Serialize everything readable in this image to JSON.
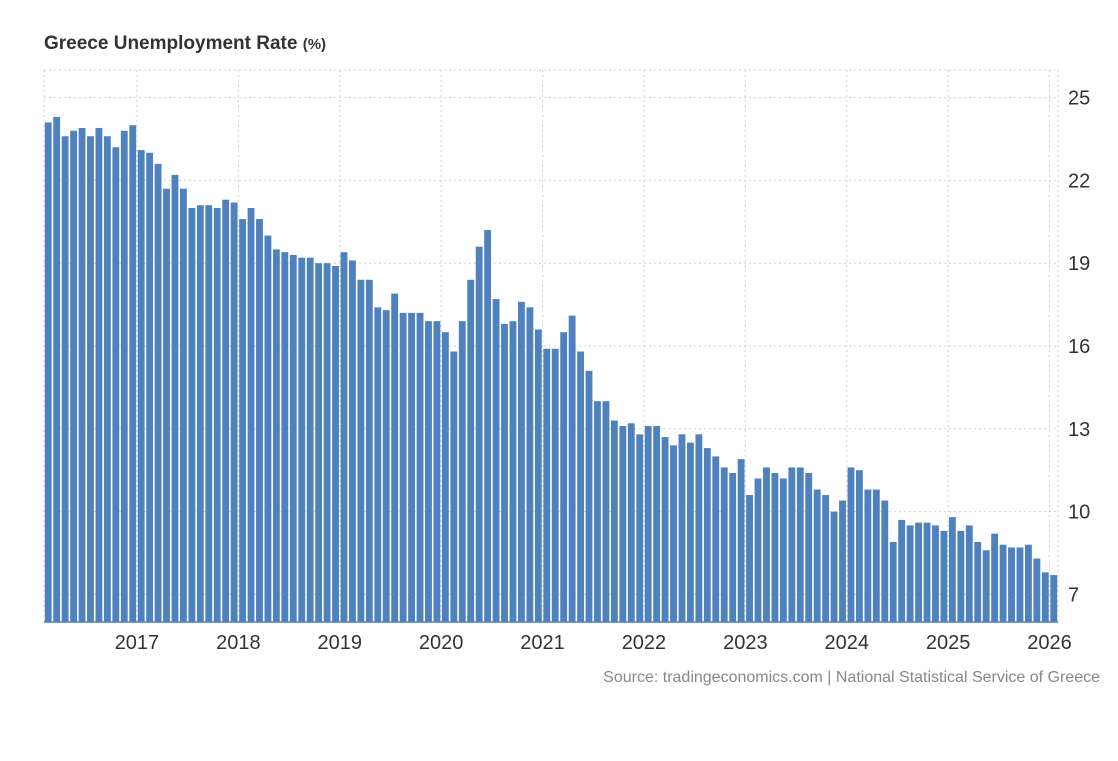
{
  "title": "Greece Unemployment Rate",
  "title_unit": "(%)",
  "source": "Source: tradingeconomics.com | National Statistical Service of Greece",
  "colors": {
    "bar": "#4f81bd",
    "grid": "#d0d0d0",
    "text": "#333333"
  },
  "chart_data": {
    "type": "bar",
    "title": "Greece Unemployment Rate (%)",
    "xlabel": "",
    "ylabel": "",
    "ylim": [
      6,
      26
    ],
    "y_ticks": [
      7,
      10,
      13,
      16,
      19,
      22,
      25
    ],
    "x_ticks": [
      "2017",
      "2018",
      "2019",
      "2020",
      "2021",
      "2022",
      "2023",
      "2024",
      "2025",
      "2026"
    ],
    "x_start": "2016-02",
    "grid": true,
    "y_axis_side": "right",
    "series": [
      {
        "name": "",
        "values": [
          24.1,
          24.3,
          23.6,
          23.8,
          23.9,
          23.6,
          23.9,
          23.6,
          23.2,
          23.8,
          24.0,
          23.1,
          23.0,
          22.6,
          21.7,
          22.2,
          21.7,
          21.0,
          21.1,
          21.1,
          21.0,
          21.3,
          21.2,
          20.6,
          21.0,
          20.6,
          20.0,
          19.5,
          19.4,
          19.3,
          19.2,
          19.2,
          19.0,
          19.0,
          18.9,
          19.4,
          19.1,
          18.4,
          18.4,
          17.4,
          17.3,
          17.9,
          17.2,
          17.2,
          17.2,
          16.9,
          16.9,
          16.5,
          15.8,
          16.9,
          18.4,
          19.6,
          20.2,
          17.7,
          16.8,
          16.9,
          17.6,
          17.4,
          16.6,
          15.9,
          15.9,
          16.5,
          17.1,
          15.8,
          15.1,
          14.0,
          14.0,
          13.3,
          13.1,
          13.2,
          12.8,
          13.1,
          13.1,
          12.7,
          12.4,
          12.8,
          12.5,
          12.8,
          12.3,
          12.0,
          11.6,
          11.4,
          11.9,
          10.6,
          11.2,
          11.6,
          11.4,
          11.2,
          11.6,
          11.6,
          11.4,
          10.8,
          10.6,
          10.0,
          10.4,
          11.6,
          11.5,
          10.8,
          10.8,
          10.4,
          8.9,
          9.7,
          9.5,
          9.6,
          9.6,
          9.5,
          9.3,
          9.8,
          9.3,
          9.5,
          8.9,
          8.6,
          9.2,
          8.8,
          8.7,
          8.7,
          8.8,
          8.3,
          7.8,
          7.7
        ]
      }
    ]
  }
}
